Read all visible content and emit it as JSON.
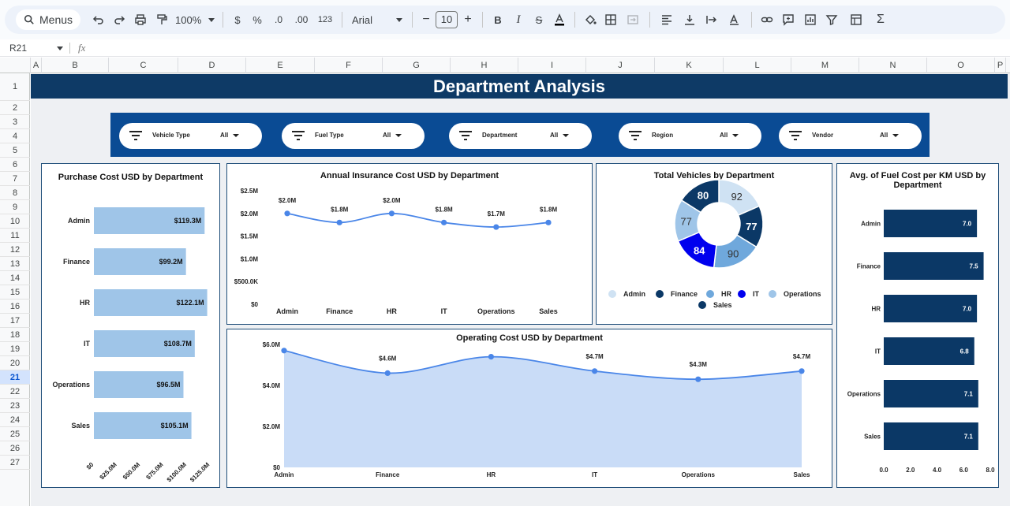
{
  "toolbar": {
    "menus_label": "Menus",
    "zoom": "100%",
    "currency": "$",
    "percent": "%",
    "dec_decrease": ".0",
    "dec_increase": ".00",
    "number_format": "123",
    "font": "Arial",
    "font_size": "10"
  },
  "formula_bar": {
    "cell_ref": "R21",
    "fx": "fx"
  },
  "columns": [
    "A",
    "B",
    "C",
    "D",
    "E",
    "F",
    "G",
    "H",
    "I",
    "J",
    "K",
    "L",
    "M",
    "N",
    "O",
    "P"
  ],
  "rows": [
    "1",
    "2",
    "3",
    "4",
    "5",
    "6",
    "7",
    "8",
    "9",
    "10",
    "11",
    "12",
    "13",
    "14",
    "15",
    "16",
    "17",
    "18",
    "19",
    "20",
    "21",
    "22",
    "23",
    "24",
    "25",
    "26",
    "27"
  ],
  "selected_row": "21",
  "dashboard": {
    "title": "Department Analysis",
    "filters": [
      {
        "label": "Vehicle Type",
        "value": "All"
      },
      {
        "label": "Fuel Type",
        "value": "All"
      },
      {
        "label": "Department",
        "value": "All"
      },
      {
        "label": "Region",
        "value": "All"
      },
      {
        "label": "Vendor",
        "value": "All"
      }
    ]
  },
  "chart_data": [
    {
      "id": "purchase",
      "type": "bar",
      "orientation": "horizontal",
      "title": "Purchase Cost USD by Department",
      "categories": [
        "Admin",
        "Finance",
        "HR",
        "IT",
        "Operations",
        "Sales"
      ],
      "values": [
        119.3,
        99.2,
        122.1,
        108.7,
        96.5,
        105.1
      ],
      "data_labels": [
        "$119.3M",
        "$99.2M",
        "$122.1M",
        "$108.7M",
        "$96.5M",
        "$105.1M"
      ],
      "xlim": [
        0,
        125
      ],
      "x_ticks": [
        "$0",
        "$25.0M",
        "$50.0M",
        "$75.0M",
        "$100.0M",
        "$125.0M"
      ],
      "color": "#9fc5e8"
    },
    {
      "id": "insurance",
      "type": "line",
      "title": "Annual Insurance Cost USD by Department",
      "categories": [
        "Admin",
        "Finance",
        "HR",
        "IT",
        "Operations",
        "Sales"
      ],
      "values": [
        2.0,
        1.8,
        2.0,
        1.8,
        1.7,
        1.8
      ],
      "data_labels": [
        "$2.0M",
        "$1.8M",
        "$2.0M",
        "$1.8M",
        "$1.7M",
        "$1.8M"
      ],
      "ylim": [
        0,
        2.5
      ],
      "y_ticks": [
        "$0",
        "$500.0K",
        "$1.0M",
        "$1.5M",
        "$2.0M",
        "$2.5M"
      ],
      "color": "#4a86e8"
    },
    {
      "id": "vehicles",
      "type": "pie",
      "title": "Total Vehicles by Department",
      "categories": [
        "Admin",
        "Finance",
        "HR",
        "IT",
        "Operations",
        "Sales"
      ],
      "values": [
        92,
        77,
        90,
        84,
        77,
        80
      ],
      "colors": [
        "#cfe2f3",
        "#0b3866",
        "#6fa8dc",
        "#0000ee",
        "#9fc5e8",
        "#0b3866"
      ]
    },
    {
      "id": "fuel",
      "type": "bar",
      "orientation": "horizontal",
      "title": "Avg. of Fuel Cost per KM USD by Department",
      "categories": [
        "Admin",
        "Finance",
        "HR",
        "IT",
        "Operations",
        "Sales"
      ],
      "values": [
        7.0,
        7.5,
        7.0,
        6.8,
        7.1,
        7.1
      ],
      "data_labels": [
        "7.0",
        "7.5",
        "7.0",
        "6.8",
        "7.1",
        "7.1"
      ],
      "xlim": [
        0,
        8
      ],
      "x_ticks": [
        "0.0",
        "2.0",
        "4.0",
        "6.0",
        "8.0"
      ],
      "color": "#0b3866"
    },
    {
      "id": "operating",
      "type": "area",
      "title": "Operating Cost USD by Department",
      "categories": [
        "Admin",
        "Finance",
        "HR",
        "IT",
        "Operations",
        "Sales"
      ],
      "values": [
        5.7,
        4.6,
        5.4,
        4.7,
        4.3,
        4.7
      ],
      "data_labels": [
        "",
        "$4.6M",
        "",
        "$4.7M",
        "$4.3M",
        "$4.7M"
      ],
      "ylim": [
        0,
        6
      ],
      "y_ticks": [
        "$0",
        "$2.0M",
        "$4.0M",
        "$6.0M"
      ],
      "color": "#4a86e8",
      "fill": "#c9dcf7"
    }
  ]
}
